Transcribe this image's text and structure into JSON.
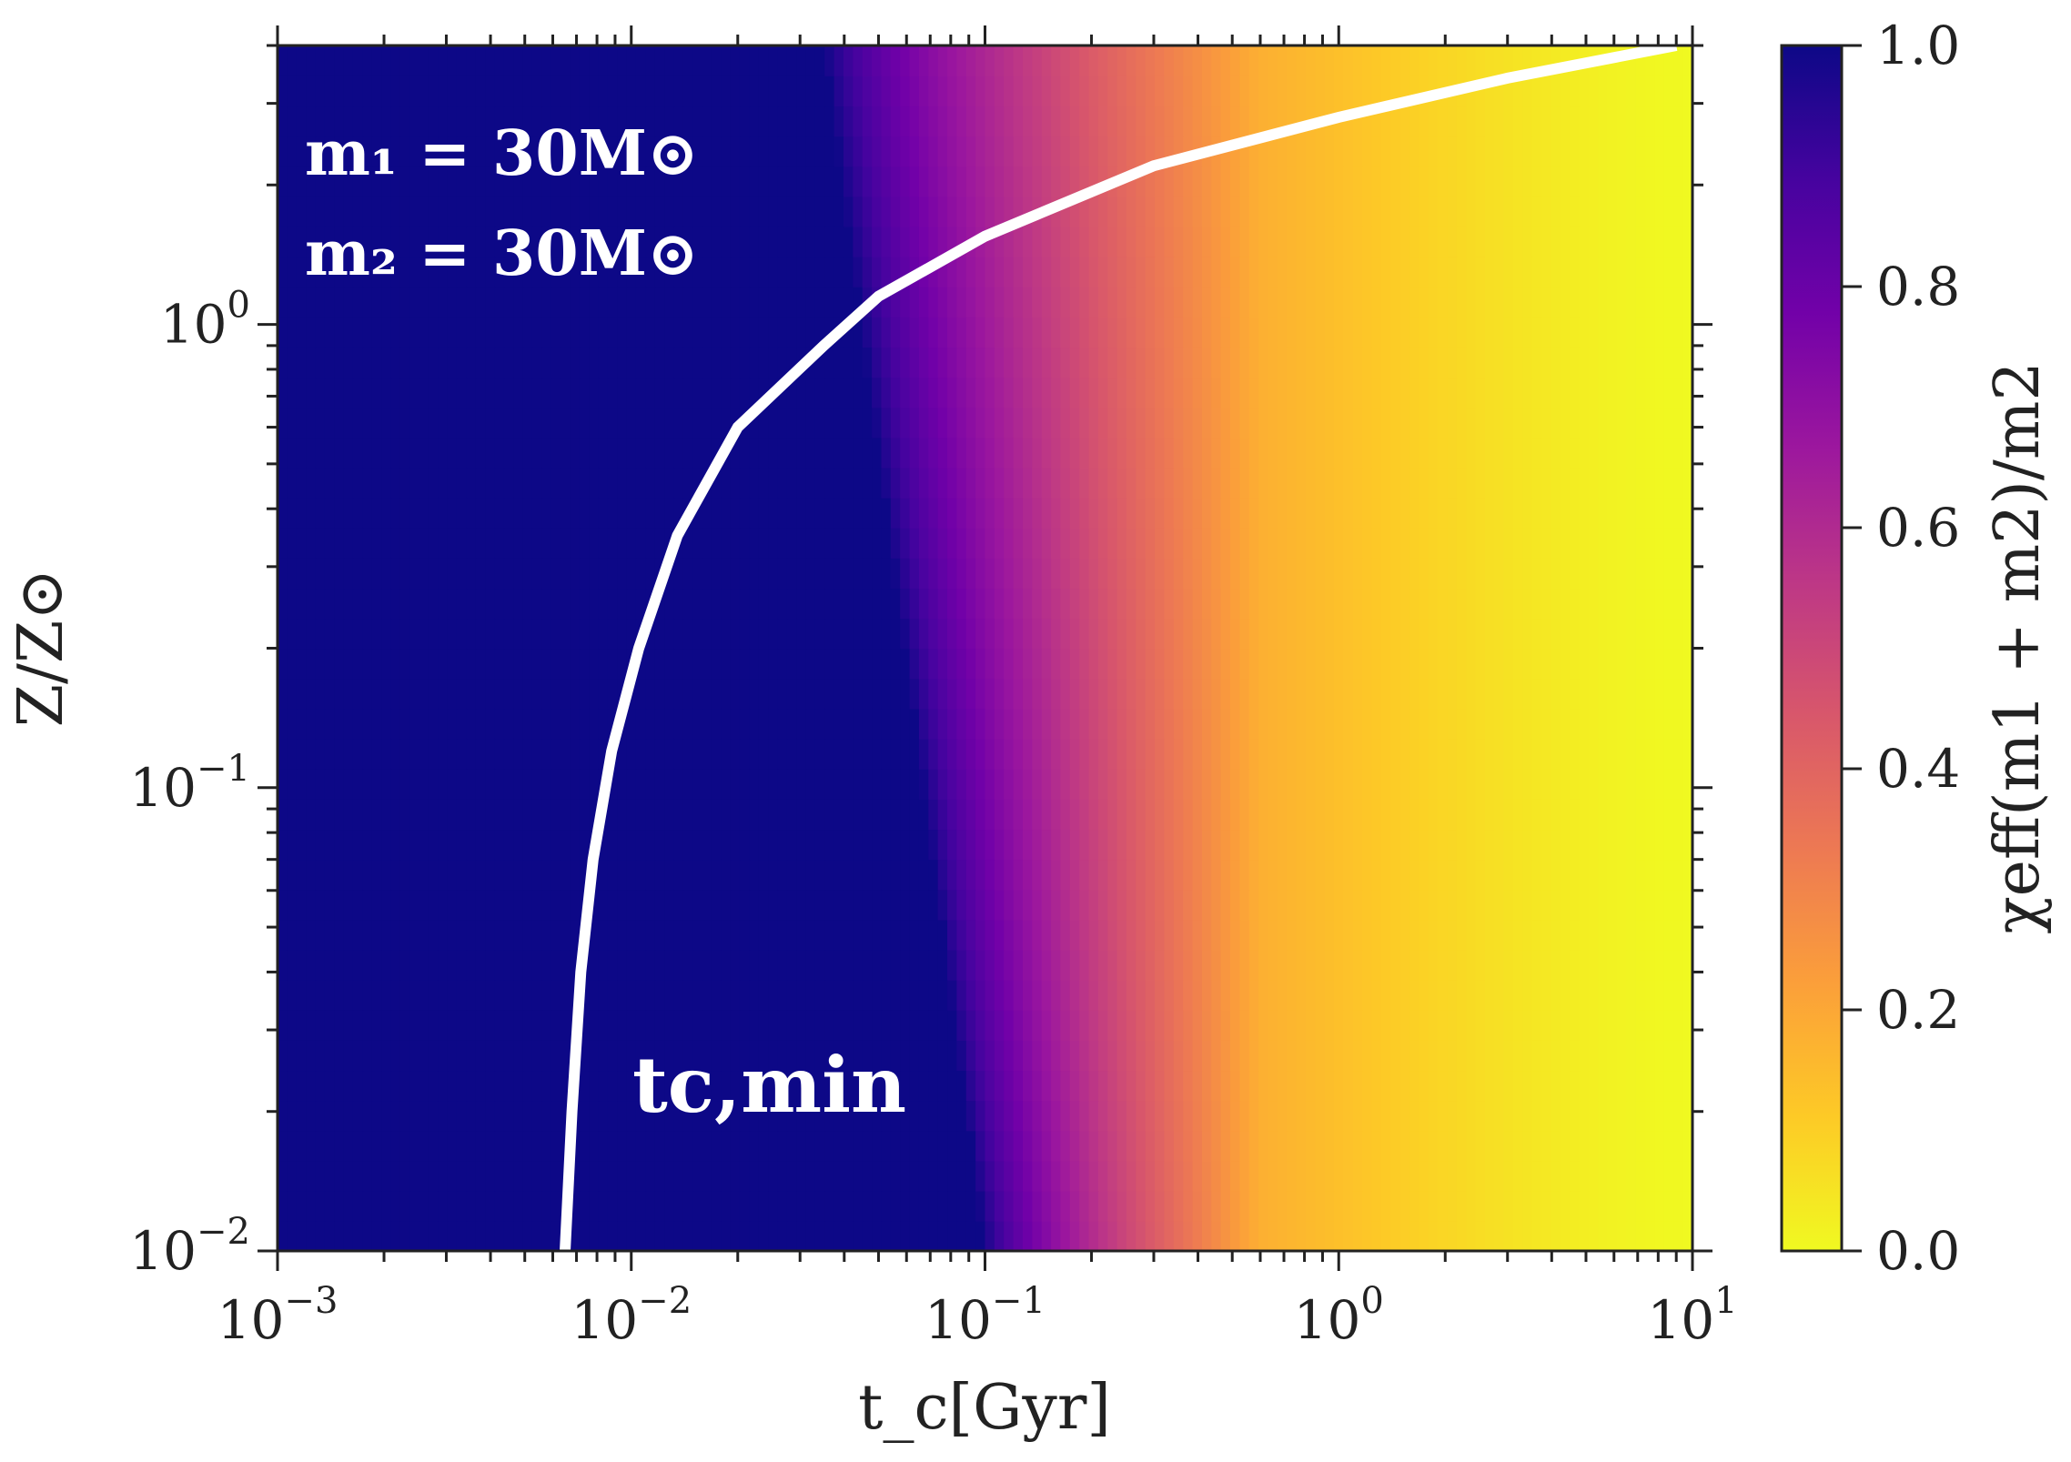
{
  "chart_data": {
    "type": "heatmap",
    "xlabel": "t_c[Gyr]",
    "ylabel": "Z/Z⊙",
    "colorbar_label": "χeff(m1 + m2)/m2",
    "x_scale": "log",
    "y_scale": "log",
    "xlim": [
      0.001,
      10
    ],
    "ylim": [
      0.01,
      4
    ],
    "x_ticks": [
      {
        "value": 0.001,
        "base": "10",
        "exp": "−3"
      },
      {
        "value": 0.01,
        "base": "10",
        "exp": "−2"
      },
      {
        "value": 0.1,
        "base": "10",
        "exp": "−1"
      },
      {
        "value": 1,
        "base": "10",
        "exp": "0"
      },
      {
        "value": 10,
        "base": "10",
        "exp": "1"
      }
    ],
    "y_ticks": [
      {
        "value": 0.01,
        "base": "10",
        "exp": "−2"
      },
      {
        "value": 0.1,
        "base": "10",
        "exp": "−1"
      },
      {
        "value": 1,
        "base": "10",
        "exp": "0"
      }
    ],
    "colorbar": {
      "range": [
        0.0,
        1.0
      ],
      "ticks": [
        "0.0",
        "0.2",
        "0.4",
        "0.6",
        "0.8",
        "1.0"
      ],
      "colormap": "plasma_r",
      "stops": [
        "#f0f921",
        "#fdca26",
        "#fb9f3a",
        "#ed7953",
        "#d8576b",
        "#bd3786",
        "#9c179e",
        "#7201a8",
        "#46039f",
        "#0d0887"
      ]
    },
    "heatmap_field": {
      "description_of_values": "value ≈ 1 left of transition, falls to ≈ 0 at long t_c",
      "transition_start_tc_at_Zmin": 0.1,
      "transition_start_tc_at_Zmax": 0.035,
      "transition_end_tc": 0.6
    },
    "curve": {
      "name": "t_c,min",
      "color": "#ffffff",
      "points": [
        [
          0.0065,
          0.01
        ],
        [
          0.0068,
          0.02
        ],
        [
          0.0072,
          0.04
        ],
        [
          0.0078,
          0.07
        ],
        [
          0.0088,
          0.12
        ],
        [
          0.0105,
          0.2
        ],
        [
          0.0135,
          0.35
        ],
        [
          0.02,
          0.6
        ],
        [
          0.035,
          0.9
        ],
        [
          0.05,
          1.15
        ],
        [
          0.1,
          1.55
        ],
        [
          0.3,
          2.2
        ],
        [
          1.0,
          2.8
        ],
        [
          3.0,
          3.4
        ],
        [
          9.0,
          4.0
        ]
      ]
    },
    "annotations": [
      {
        "name": "m1-label",
        "text": "m₁ = 30M⊙"
      },
      {
        "name": "m2-label",
        "text": "m₂ = 30M⊙"
      },
      {
        "name": "tcmin-label",
        "text": "tc,min"
      }
    ]
  }
}
